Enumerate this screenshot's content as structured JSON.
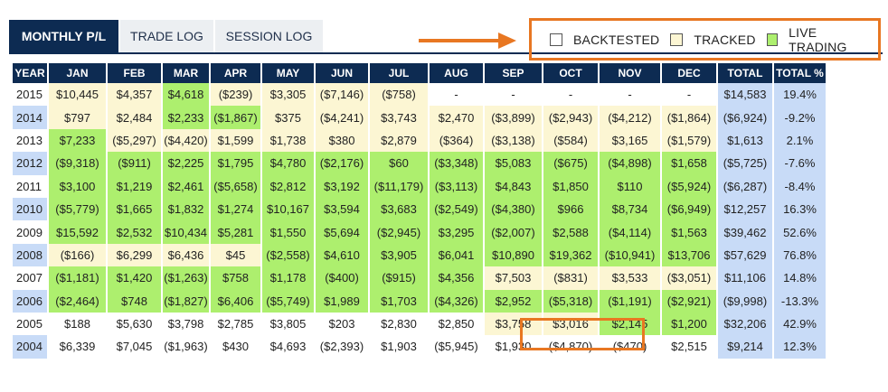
{
  "tabs": [
    "MONTHLY P/L",
    "TRADE LOG",
    "SESSION LOG"
  ],
  "legend": {
    "backtested": "BACKTESTED",
    "tracked": "TRACKED",
    "live": "LIVE TRADING",
    "colors": {
      "backtested": "#ffffff",
      "tracked": "#fcf6d3",
      "live": "#adef6e"
    }
  },
  "columns": [
    "YEAR",
    "JAN",
    "FEB",
    "MAR",
    "APR",
    "MAY",
    "JUN",
    "JUL",
    "AUG",
    "SEP",
    "OCT",
    "NOV",
    "DEC",
    "TOTAL",
    "TOTAL %"
  ],
  "rows": [
    {
      "year": "2015",
      "cells": [
        [
          "$10,445",
          "t"
        ],
        [
          "$4,357",
          "t"
        ],
        [
          "$4,618",
          "l"
        ],
        [
          "($239)",
          "t"
        ],
        [
          "$3,305",
          "t"
        ],
        [
          "($7,146)",
          "t"
        ],
        [
          "($758)",
          "t"
        ],
        [
          "-",
          "b"
        ],
        [
          "-",
          "b"
        ],
        [
          "-",
          "b"
        ],
        [
          "-",
          "b"
        ],
        [
          "-",
          "b"
        ]
      ],
      "total": "$14,583",
      "pct": "19.4%"
    },
    {
      "year": "2014",
      "cells": [
        [
          "$797",
          "t"
        ],
        [
          "$2,484",
          "t"
        ],
        [
          "$2,233",
          "l"
        ],
        [
          "($1,867)",
          "l"
        ],
        [
          "$375",
          "t"
        ],
        [
          "($4,241)",
          "t"
        ],
        [
          "$3,743",
          "t"
        ],
        [
          "$2,470",
          "t"
        ],
        [
          "($3,899)",
          "t"
        ],
        [
          "($2,943)",
          "t"
        ],
        [
          "($4,212)",
          "t"
        ],
        [
          "($1,864)",
          "t"
        ]
      ],
      "total": "($6,924)",
      "pct": "-9.2%"
    },
    {
      "year": "2013",
      "cells": [
        [
          "$7,233",
          "l"
        ],
        [
          "($5,297)",
          "t"
        ],
        [
          "($4,420)",
          "t"
        ],
        [
          "$1,599",
          "t"
        ],
        [
          "$1,738",
          "t"
        ],
        [
          "$380",
          "t"
        ],
        [
          "$2,879",
          "t"
        ],
        [
          "($364)",
          "t"
        ],
        [
          "($3,138)",
          "t"
        ],
        [
          "($584)",
          "t"
        ],
        [
          "$3,165",
          "t"
        ],
        [
          "($1,579)",
          "t"
        ]
      ],
      "total": "$1,613",
      "pct": "2.1%"
    },
    {
      "year": "2012",
      "cells": [
        [
          "($9,318)",
          "l"
        ],
        [
          "($911)",
          "l"
        ],
        [
          "$2,225",
          "l"
        ],
        [
          "$1,795",
          "l"
        ],
        [
          "$4,780",
          "l"
        ],
        [
          "($2,176)",
          "l"
        ],
        [
          "$60",
          "l"
        ],
        [
          "($3,348)",
          "l"
        ],
        [
          "$5,083",
          "l"
        ],
        [
          "($675)",
          "l"
        ],
        [
          "($4,898)",
          "l"
        ],
        [
          "$1,658",
          "l"
        ]
      ],
      "total": "($5,725)",
      "pct": "-7.6%"
    },
    {
      "year": "2011",
      "cells": [
        [
          "$3,100",
          "l"
        ],
        [
          "$1,219",
          "l"
        ],
        [
          "$2,461",
          "l"
        ],
        [
          "($5,658)",
          "l"
        ],
        [
          "$2,812",
          "l"
        ],
        [
          "$3,192",
          "l"
        ],
        [
          "($11,179)",
          "l"
        ],
        [
          "($3,113)",
          "l"
        ],
        [
          "$4,843",
          "l"
        ],
        [
          "$1,850",
          "l"
        ],
        [
          "$110",
          "l"
        ],
        [
          "($5,924)",
          "l"
        ]
      ],
      "total": "($6,287)",
      "pct": "-8.4%"
    },
    {
      "year": "2010",
      "cells": [
        [
          "($5,779)",
          "l"
        ],
        [
          "$1,665",
          "l"
        ],
        [
          "$1,832",
          "l"
        ],
        [
          "$1,274",
          "l"
        ],
        [
          "$10,167",
          "l"
        ],
        [
          "$3,594",
          "l"
        ],
        [
          "$3,683",
          "l"
        ],
        [
          "($2,549)",
          "l"
        ],
        [
          "($4,380)",
          "l"
        ],
        [
          "$966",
          "l"
        ],
        [
          "$8,734",
          "l"
        ],
        [
          "($6,949)",
          "l"
        ]
      ],
      "total": "$12,257",
      "pct": "16.3%"
    },
    {
      "year": "2009",
      "cells": [
        [
          "$15,592",
          "l"
        ],
        [
          "$2,532",
          "l"
        ],
        [
          "$10,434",
          "l"
        ],
        [
          "$5,281",
          "l"
        ],
        [
          "$1,550",
          "l"
        ],
        [
          "$5,694",
          "l"
        ],
        [
          "($2,945)",
          "l"
        ],
        [
          "$3,295",
          "l"
        ],
        [
          "($2,007)",
          "l"
        ],
        [
          "$2,588",
          "l"
        ],
        [
          "($4,114)",
          "l"
        ],
        [
          "$1,563",
          "l"
        ]
      ],
      "total": "$39,462",
      "pct": "52.6%"
    },
    {
      "year": "2008",
      "cells": [
        [
          "($166)",
          "t"
        ],
        [
          "$6,299",
          "t"
        ],
        [
          "$6,436",
          "t"
        ],
        [
          "$45",
          "t"
        ],
        [
          "($2,558)",
          "l"
        ],
        [
          "$4,610",
          "l"
        ],
        [
          "$3,905",
          "l"
        ],
        [
          "$6,041",
          "l"
        ],
        [
          "$10,890",
          "l"
        ],
        [
          "$19,362",
          "l"
        ],
        [
          "($10,941)",
          "l"
        ],
        [
          "$13,706",
          "l"
        ]
      ],
      "total": "$57,629",
      "pct": "76.8%"
    },
    {
      "year": "2007",
      "cells": [
        [
          "($1,181)",
          "l"
        ],
        [
          "$1,420",
          "l"
        ],
        [
          "($1,263)",
          "l"
        ],
        [
          "$758",
          "l"
        ],
        [
          "$1,178",
          "l"
        ],
        [
          "($400)",
          "l"
        ],
        [
          "($915)",
          "l"
        ],
        [
          "$4,356",
          "l"
        ],
        [
          "$7,503",
          "t"
        ],
        [
          "($831)",
          "t"
        ],
        [
          "$3,533",
          "t"
        ],
        [
          "($3,051)",
          "t"
        ]
      ],
      "total": "$11,106",
      "pct": "14.8%"
    },
    {
      "year": "2006",
      "cells": [
        [
          "($2,464)",
          "l"
        ],
        [
          "$748",
          "l"
        ],
        [
          "($1,827)",
          "l"
        ],
        [
          "$6,406",
          "l"
        ],
        [
          "($5,749)",
          "l"
        ],
        [
          "$1,989",
          "l"
        ],
        [
          "$1,703",
          "l"
        ],
        [
          "($4,326)",
          "l"
        ],
        [
          "$2,952",
          "l"
        ],
        [
          "($5,318)",
          "l"
        ],
        [
          "($1,191)",
          "l"
        ],
        [
          "($2,921)",
          "l"
        ]
      ],
      "total": "($9,998)",
      "pct": "-13.3%"
    },
    {
      "year": "2005",
      "cells": [
        [
          "$188",
          "b"
        ],
        [
          "$5,630",
          "b"
        ],
        [
          "$3,798",
          "b"
        ],
        [
          "$2,785",
          "b"
        ],
        [
          "$3,805",
          "b"
        ],
        [
          "$203",
          "b"
        ],
        [
          "$2,830",
          "b"
        ],
        [
          "$2,850",
          "b"
        ],
        [
          "$3,758",
          "t"
        ],
        [
          "$3,016",
          "t"
        ],
        [
          "$2,145",
          "l"
        ],
        [
          "$1,200",
          "l"
        ]
      ],
      "total": "$32,206",
      "pct": "42.9%"
    },
    {
      "year": "2004",
      "cells": [
        [
          "$6,339",
          "b"
        ],
        [
          "$7,045",
          "b"
        ],
        [
          "($1,963)",
          "b"
        ],
        [
          "$430",
          "b"
        ],
        [
          "$4,693",
          "b"
        ],
        [
          "($2,393)",
          "b"
        ],
        [
          "$1,903",
          "b"
        ],
        [
          "($5,945)",
          "b"
        ],
        [
          "$1,930",
          "b"
        ],
        [
          "($4,870)",
          "b"
        ],
        [
          "($470)",
          "b"
        ],
        [
          "$2,515",
          "b"
        ]
      ],
      "total": "$9,214",
      "pct": "12.3%"
    }
  ]
}
